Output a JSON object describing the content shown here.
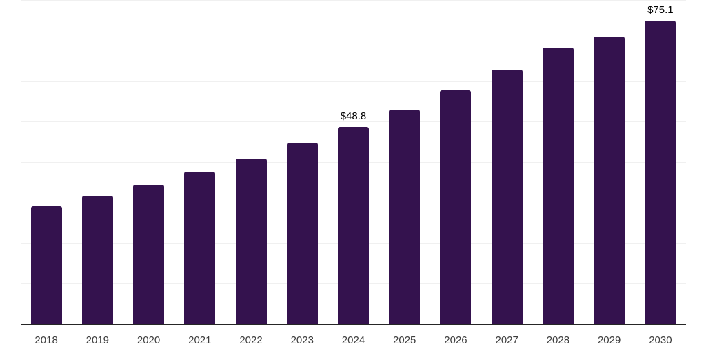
{
  "chart_data": {
    "type": "bar",
    "title": "",
    "categories": [
      "2018",
      "2019",
      "2020",
      "2021",
      "2022",
      "2023",
      "2024",
      "2025",
      "2026",
      "2027",
      "2028",
      "2029",
      "2030"
    ],
    "values": [
      29.3,
      31.9,
      34.6,
      37.8,
      41.1,
      44.9,
      48.8,
      53.1,
      57.9,
      63.0,
      68.5,
      71.1,
      75.1
    ],
    "data_labels": [
      "",
      "",
      "",
      "",
      "",
      "",
      "$48.8",
      "",
      "",
      "",
      "",
      "",
      "$75.1"
    ],
    "value_prefix": "$",
    "xlabel": "",
    "ylabel": "",
    "ylim": [
      0,
      80
    ],
    "gridline_step": 10,
    "grid_on": true,
    "legend": "none",
    "bar_color": "#34124E",
    "grid_color": "#f0f0f0",
    "axis_color": "#262626",
    "tick_label_color": "#3d3d3d",
    "value_label_color": "#000000"
  }
}
